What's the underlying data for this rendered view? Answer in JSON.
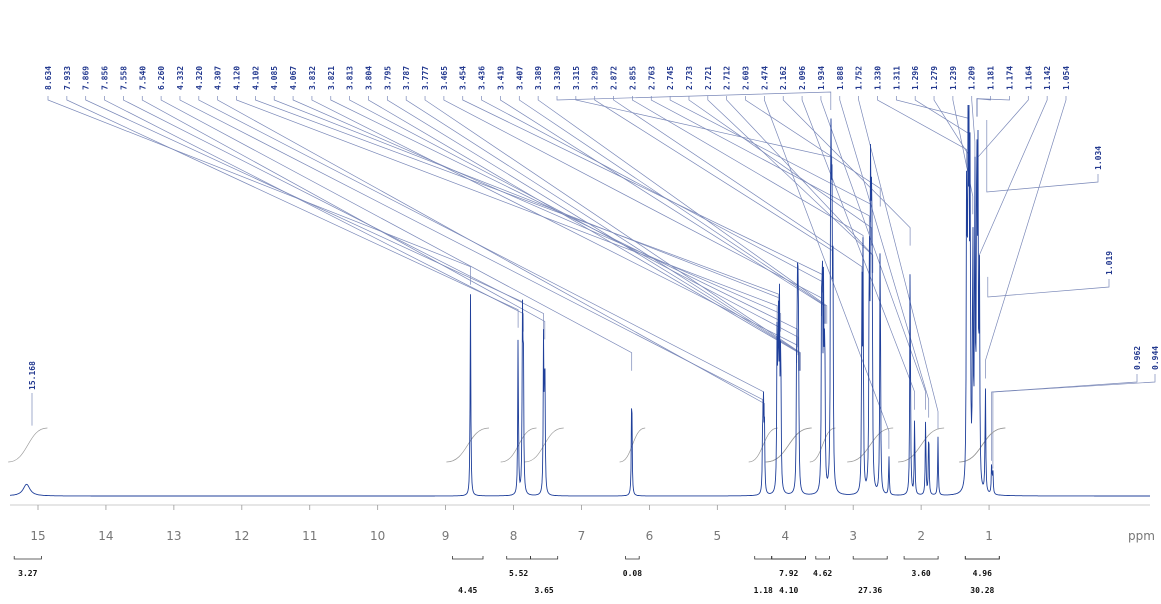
{
  "chart_data": {
    "type": "line",
    "title": "",
    "xlabel": "ppm",
    "xlim": [
      15.5,
      0
    ],
    "x_reversed": true,
    "grid": false,
    "x_ticks": [
      15,
      14,
      13,
      12,
      11,
      10,
      9,
      8,
      7,
      6,
      5,
      4,
      3,
      2,
      1
    ],
    "peak_labels": [
      "8.634",
      "7.933",
      "7.869",
      "7.856",
      "7.558",
      "7.540",
      "6.260",
      "4.332",
      "4.320",
      "4.307",
      "4.120",
      "4.102",
      "4.085",
      "4.067",
      "3.832",
      "3.821",
      "3.813",
      "3.804",
      "3.795",
      "3.787",
      "3.777",
      "3.465",
      "3.454",
      "3.436",
      "3.419",
      "3.407",
      "3.389",
      "3.330",
      "3.315",
      "3.299",
      "2.872",
      "2.855",
      "2.763",
      "2.745",
      "2.733",
      "2.721",
      "2.712",
      "2.603",
      "2.474",
      "2.162",
      "2.096",
      "1.934",
      "1.888",
      "1.752",
      "1.330",
      "1.311",
      "1.296",
      "1.279",
      "1.239",
      "1.209",
      "1.181",
      "1.174",
      "1.164",
      "1.142",
      "1.054"
    ],
    "side_labels": [
      "1.034",
      "1.019",
      "0.962",
      "0.944",
      "15.168"
    ],
    "peaks": [
      {
        "ppm": 15.168,
        "height": 0.03
      },
      {
        "ppm": 8.634,
        "height": 0.52
      },
      {
        "ppm": 7.933,
        "height": 0.41
      },
      {
        "ppm": 7.869,
        "height": 0.43
      },
      {
        "ppm": 7.856,
        "height": 0.4
      },
      {
        "ppm": 7.558,
        "height": 0.4
      },
      {
        "ppm": 7.54,
        "height": 0.38
      },
      {
        "ppm": 6.26,
        "height": 0.3
      },
      {
        "ppm": 4.332,
        "height": 0.18
      },
      {
        "ppm": 4.32,
        "height": 0.2
      },
      {
        "ppm": 4.307,
        "height": 0.17
      },
      {
        "ppm": 4.12,
        "height": 0.42
      },
      {
        "ppm": 4.102,
        "height": 0.45
      },
      {
        "ppm": 4.085,
        "height": 0.44
      },
      {
        "ppm": 4.067,
        "height": 0.4
      },
      {
        "ppm": 3.832,
        "height": 0.32
      },
      {
        "ppm": 3.821,
        "height": 0.36
      },
      {
        "ppm": 3.813,
        "height": 0.34
      },
      {
        "ppm": 3.804,
        "height": 0.3
      },
      {
        "ppm": 3.465,
        "height": 0.44
      },
      {
        "ppm": 3.454,
        "height": 0.5
      },
      {
        "ppm": 3.436,
        "height": 0.48
      },
      {
        "ppm": 3.419,
        "height": 0.42
      },
      {
        "ppm": 3.33,
        "height": 0.99
      },
      {
        "ppm": 3.315,
        "height": 0.8
      },
      {
        "ppm": 3.299,
        "height": 0.56
      },
      {
        "ppm": 2.872,
        "height": 0.52
      },
      {
        "ppm": 2.855,
        "height": 0.6
      },
      {
        "ppm": 2.763,
        "height": 0.65
      },
      {
        "ppm": 2.745,
        "height": 0.68
      },
      {
        "ppm": 2.733,
        "height": 0.62
      },
      {
        "ppm": 2.721,
        "height": 0.55
      },
      {
        "ppm": 2.603,
        "height": 0.72
      },
      {
        "ppm": 2.474,
        "height": 0.1
      },
      {
        "ppm": 2.162,
        "height": 0.62
      },
      {
        "ppm": 2.096,
        "height": 0.2
      },
      {
        "ppm": 1.934,
        "height": 0.2
      },
      {
        "ppm": 1.888,
        "height": 0.18
      },
      {
        "ppm": 1.752,
        "height": 0.15
      },
      {
        "ppm": 1.33,
        "height": 0.82
      },
      {
        "ppm": 1.311,
        "height": 0.9
      },
      {
        "ppm": 1.296,
        "height": 0.86
      },
      {
        "ppm": 1.279,
        "height": 0.8
      },
      {
        "ppm": 1.239,
        "height": 0.7
      },
      {
        "ppm": 1.209,
        "height": 0.84
      },
      {
        "ppm": 1.181,
        "height": 0.95
      },
      {
        "ppm": 1.164,
        "height": 0.8
      },
      {
        "ppm": 1.142,
        "height": 0.55
      },
      {
        "ppm": 1.054,
        "height": 0.28
      },
      {
        "ppm": 0.962,
        "height": 0.08
      },
      {
        "ppm": 0.944,
        "height": 0.06
      }
    ],
    "integrals": [
      {
        "label": "3.27",
        "from": 15.35,
        "to": 14.95,
        "row": 1
      },
      {
        "label": "4.45",
        "from": 8.9,
        "to": 8.45,
        "row": 2
      },
      {
        "label": "5.52",
        "from": 8.1,
        "to": 7.75,
        "row": 1
      },
      {
        "label": "3.65",
        "from": 7.75,
        "to": 7.35,
        "row": 2
      },
      {
        "label": "0.08",
        "from": 6.35,
        "to": 6.15,
        "row": 1
      },
      {
        "label": "7.92",
        "from": 4.2,
        "to": 3.7,
        "row": 1
      },
      {
        "label": "1.18",
        "from": 4.45,
        "to": 4.2,
        "row": 2
      },
      {
        "label": "4.10",
        "from": 4.2,
        "to": 3.7,
        "row": 2
      },
      {
        "label": "4.62",
        "from": 3.55,
        "to": 3.35,
        "row": 1
      },
      {
        "label": "27.36",
        "from": 3.0,
        "to": 2.5,
        "row": 2
      },
      {
        "label": "3.60",
        "from": 2.25,
        "to": 1.75,
        "row": 1
      },
      {
        "label": "4.96",
        "from": 1.35,
        "to": 0.85,
        "row": 1
      },
      {
        "label": "30.28",
        "from": 1.35,
        "to": 0.85,
        "row": 2
      }
    ],
    "colors": {
      "spectrum": "#1f3f9a",
      "connector": "#7a88b8",
      "label": "#23398f",
      "axis": "#999999",
      "integral": "#333333"
    }
  }
}
